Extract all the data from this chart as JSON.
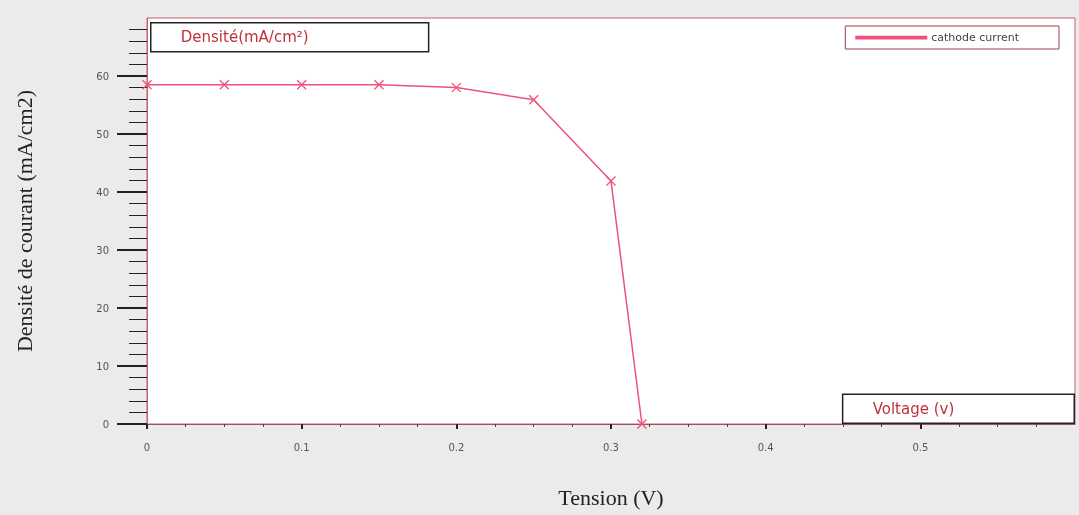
{
  "chart_data": {
    "type": "line",
    "xlabel": "Tension (V)",
    "ylabel": "Densité de courant (mA/cm2)",
    "annotations": [
      "Densité(mA/cm²)",
      "Voltage (v)"
    ],
    "x": [
      0,
      0.05,
      0.1,
      0.15,
      0.2,
      0.25,
      0.3,
      0.32
    ],
    "series": [
      {
        "name": "cathode current",
        "color": "#f0507a",
        "values": [
          58.5,
          58.5,
          58.5,
          58.5,
          58.0,
          55.9,
          41.9,
          0
        ]
      }
    ],
    "xlim": [
      0,
      0.6
    ],
    "xticks": [
      0,
      0.1,
      0.2,
      0.3,
      0.4,
      0.5
    ],
    "ylim": [
      0,
      70
    ],
    "yticks": [
      0,
      10,
      20,
      30,
      40,
      50,
      60
    ],
    "grid": false,
    "legend": "top right",
    "marker": "cross",
    "line_style": "solid"
  }
}
